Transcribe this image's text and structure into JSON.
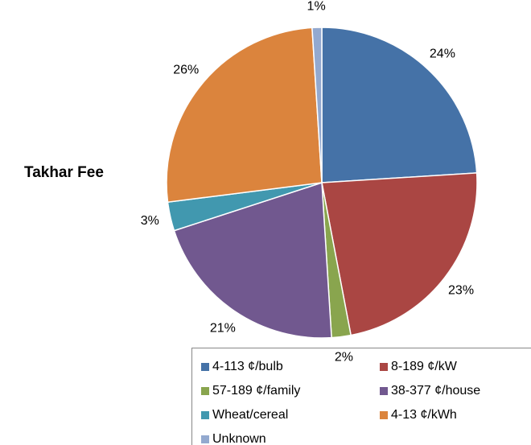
{
  "chart_data": {
    "type": "pie",
    "title": "Takhar Fee",
    "categories": [
      "4-113 ¢/bulb",
      "8-189 ¢/kW",
      "57-189 ¢/family",
      "38-377 ¢/house",
      "Wheat/cereal",
      "4-13 ¢/kWh",
      "Unknown"
    ],
    "values": [
      24,
      23,
      2,
      21,
      3,
      26,
      1
    ],
    "value_labels": [
      "24%",
      "23%",
      "2%",
      "21%",
      "3%",
      "26%",
      "1%"
    ],
    "colors": [
      "#4572a7",
      "#aa4643",
      "#89a54e",
      "#71588f",
      "#4198af",
      "#db843d",
      "#93a9cf"
    ],
    "legend": "bottom"
  }
}
